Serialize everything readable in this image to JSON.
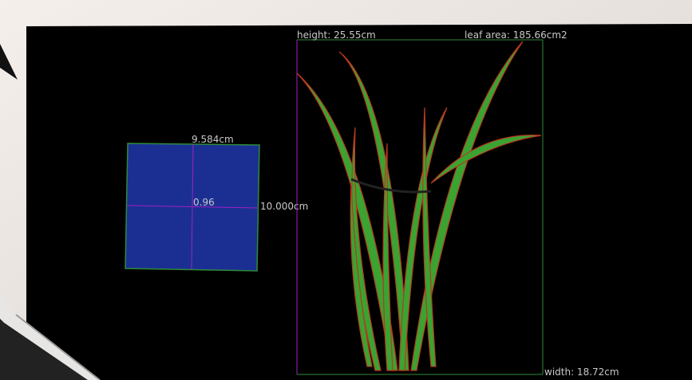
{
  "annotations": {
    "height": "height: 25.55cm",
    "leaf_area": "leaf area: 185.66cm2",
    "reference_width": "9.584cm",
    "reference_ratio": "0.96",
    "reference_height": "10.000cm",
    "width": "width: 18.72cm"
  }
}
